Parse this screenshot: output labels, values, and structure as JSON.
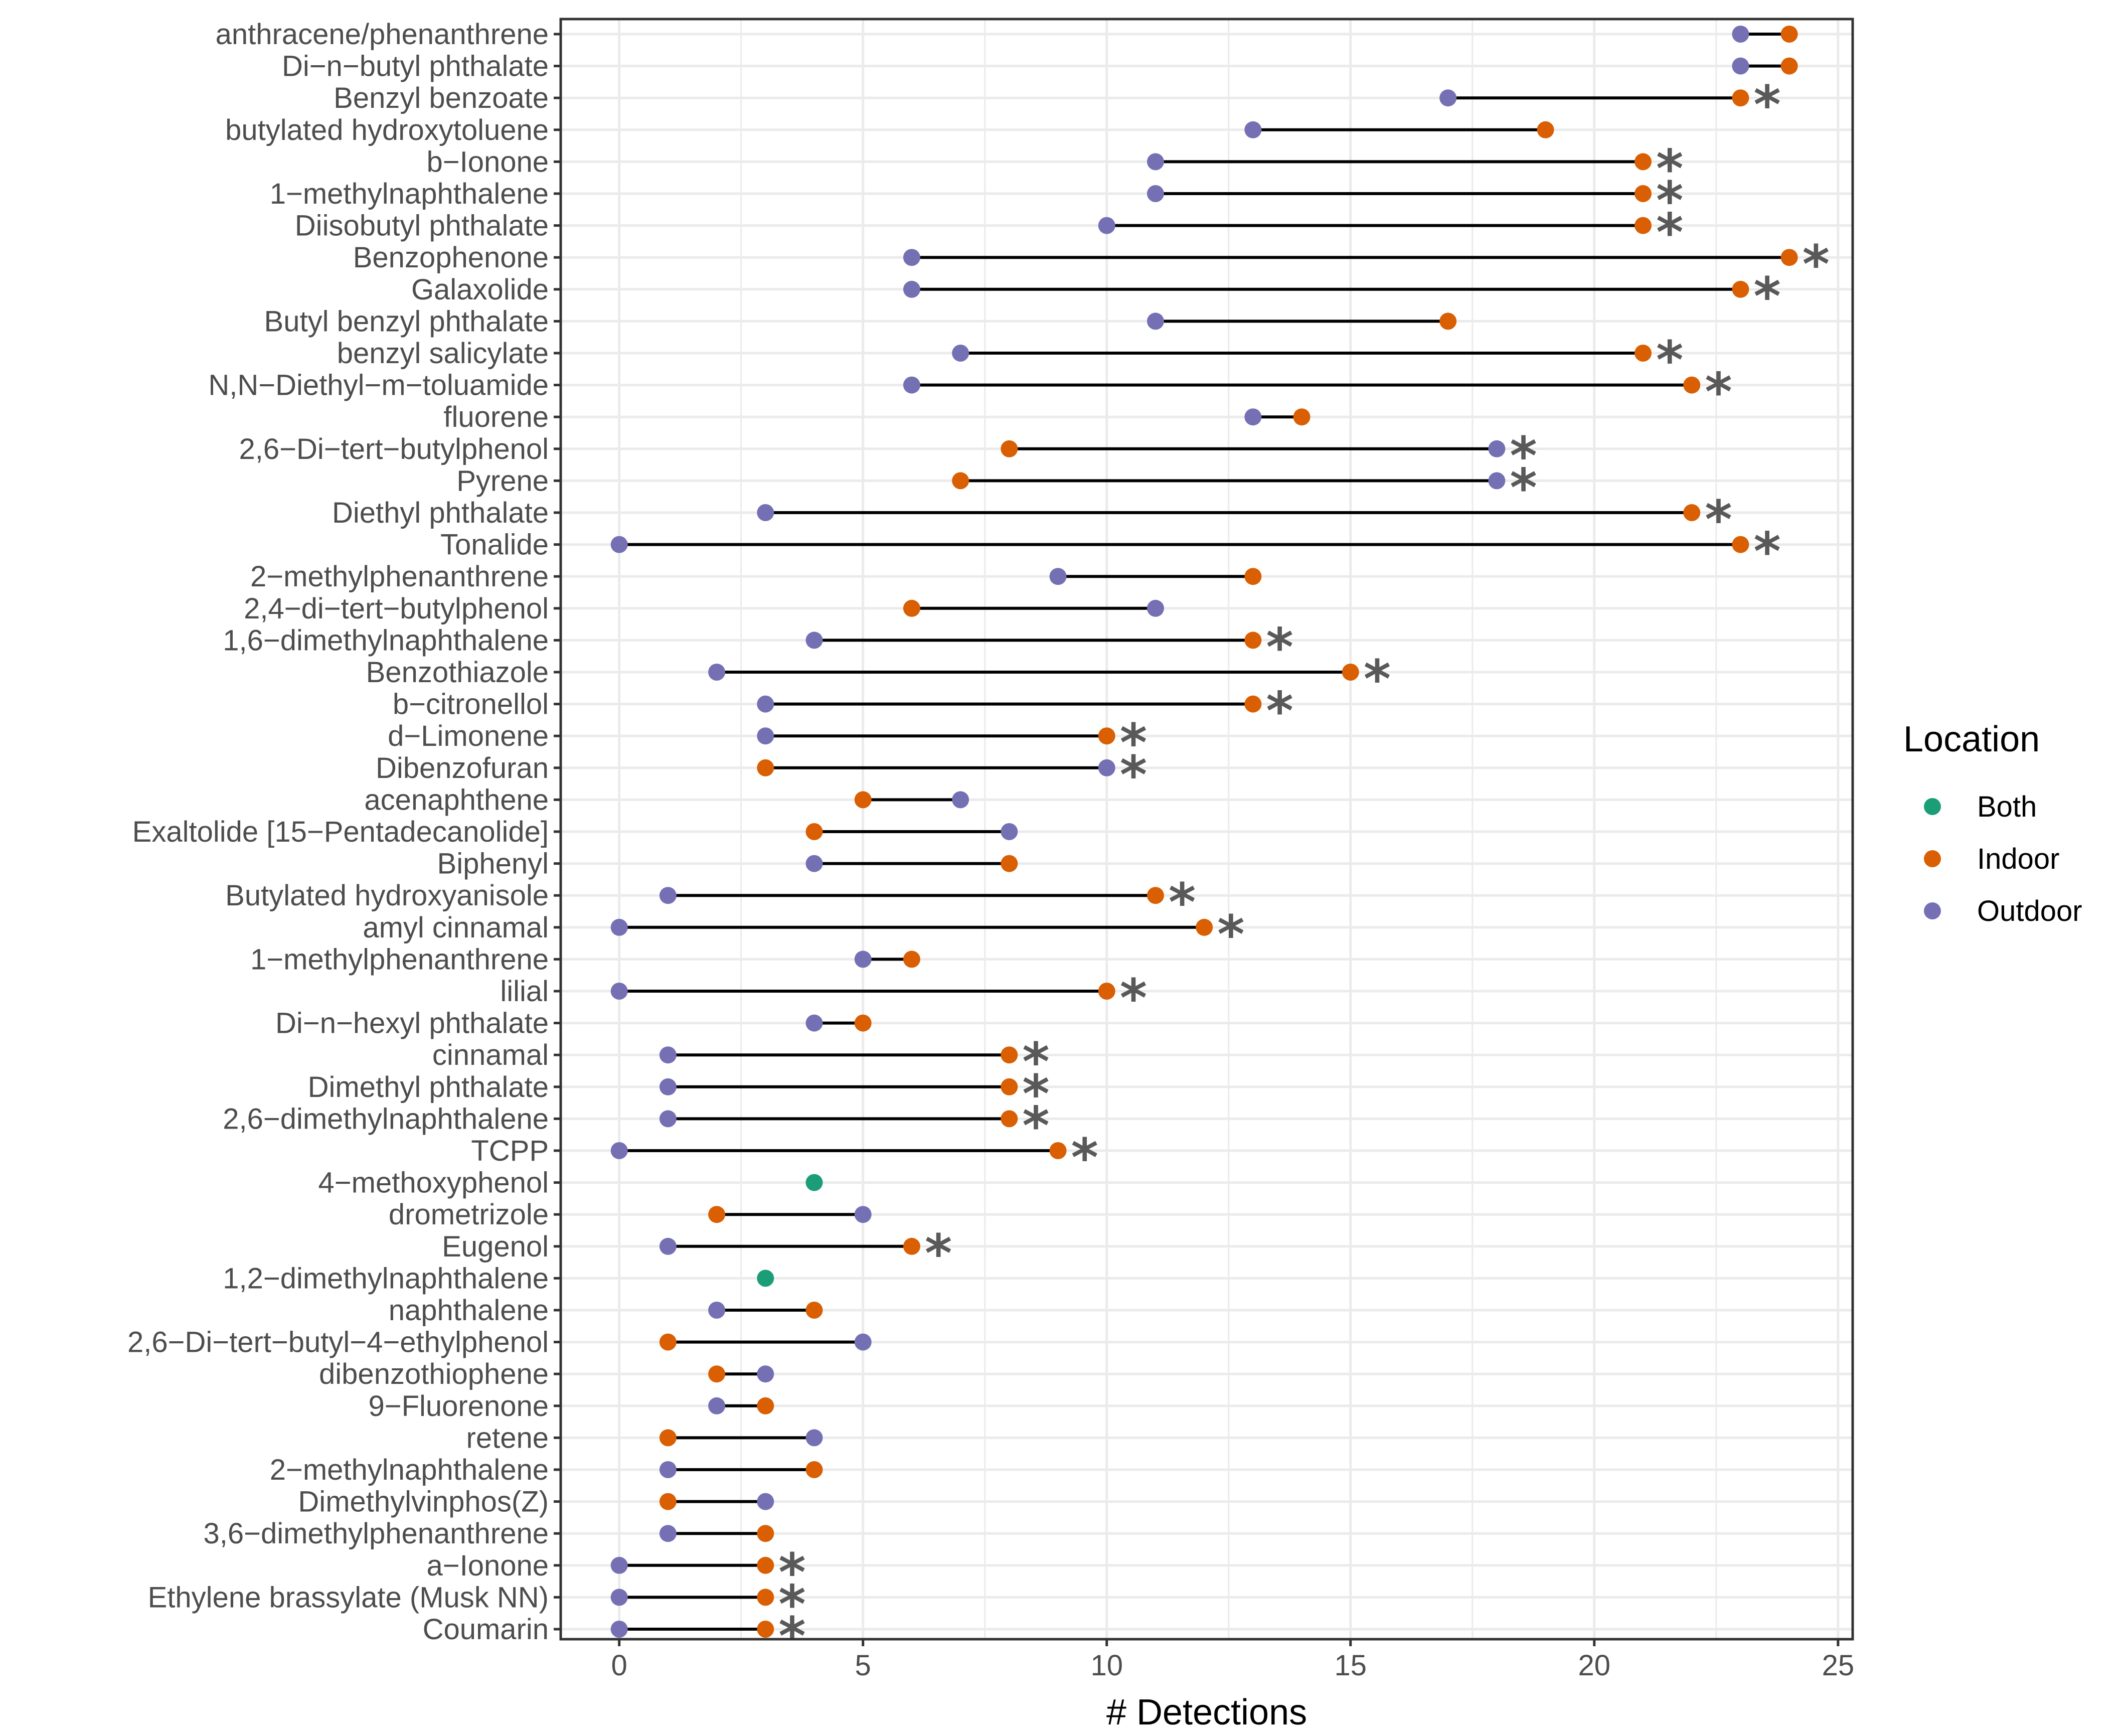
{
  "chart_data": {
    "type": "dumbbell",
    "xlabel": "# Detections",
    "xlim": [
      -1.2,
      25.3
    ],
    "xticks": [
      0,
      5,
      10,
      15,
      20,
      25
    ],
    "legend": {
      "title": "Location",
      "position": "right",
      "entries": [
        {
          "name": "Both",
          "color": "#1B9E77"
        },
        {
          "name": "Indoor",
          "color": "#D95F02"
        },
        {
          "name": "Outdoor",
          "color": "#7570B3"
        }
      ]
    },
    "significance_marker": "*",
    "rows": [
      {
        "label": "anthracene/phenanthrene",
        "indoor": 24,
        "outdoor": 23,
        "sig": false
      },
      {
        "label": "Di−n−butyl phthalate",
        "indoor": 24,
        "outdoor": 23,
        "sig": false
      },
      {
        "label": "Benzyl benzoate",
        "indoor": 23,
        "outdoor": 17,
        "sig": true
      },
      {
        "label": "butylated hydroxytoluene",
        "indoor": 19,
        "outdoor": 13,
        "sig": false
      },
      {
        "label": "b−Ionone",
        "indoor": 21,
        "outdoor": 11,
        "sig": true
      },
      {
        "label": "1−methylnaphthalene",
        "indoor": 21,
        "outdoor": 11,
        "sig": true
      },
      {
        "label": "Diisobutyl phthalate",
        "indoor": 21,
        "outdoor": 10,
        "sig": true
      },
      {
        "label": "Benzophenone",
        "indoor": 24,
        "outdoor": 6,
        "sig": true
      },
      {
        "label": "Galaxolide",
        "indoor": 23,
        "outdoor": 6,
        "sig": true
      },
      {
        "label": "Butyl benzyl phthalate",
        "indoor": 17,
        "outdoor": 11,
        "sig": false
      },
      {
        "label": "benzyl salicylate",
        "indoor": 21,
        "outdoor": 7,
        "sig": true
      },
      {
        "label": "N,N−Diethyl−m−toluamide",
        "indoor": 22,
        "outdoor": 6,
        "sig": true
      },
      {
        "label": "fluorene",
        "indoor": 14,
        "outdoor": 13,
        "sig": false
      },
      {
        "label": "2,6−Di−tert−butylphenol",
        "indoor": 8,
        "outdoor": 18,
        "sig": true
      },
      {
        "label": "Pyrene",
        "indoor": 7,
        "outdoor": 18,
        "sig": true
      },
      {
        "label": "Diethyl phthalate",
        "indoor": 22,
        "outdoor": 3,
        "sig": true
      },
      {
        "label": "Tonalide",
        "indoor": 23,
        "outdoor": 0,
        "sig": true
      },
      {
        "label": "2−methylphenanthrene",
        "indoor": 13,
        "outdoor": 9,
        "sig": false
      },
      {
        "label": "2,4−di−tert−butylphenol",
        "indoor": 6,
        "outdoor": 11,
        "sig": false
      },
      {
        "label": "1,6−dimethylnaphthalene",
        "indoor": 13,
        "outdoor": 4,
        "sig": true
      },
      {
        "label": "Benzothiazole",
        "indoor": 15,
        "outdoor": 2,
        "sig": true
      },
      {
        "label": "b−citronellol",
        "indoor": 13,
        "outdoor": 3,
        "sig": true
      },
      {
        "label": "d−Limonene",
        "indoor": 10,
        "outdoor": 3,
        "sig": true
      },
      {
        "label": "Dibenzofuran",
        "indoor": 3,
        "outdoor": 10,
        "sig": true
      },
      {
        "label": "acenaphthene",
        "indoor": 5,
        "outdoor": 7,
        "sig": false
      },
      {
        "label": "Exaltolide [15−Pentadecanolide]",
        "indoor": 4,
        "outdoor": 8,
        "sig": false
      },
      {
        "label": "Biphenyl",
        "indoor": 8,
        "outdoor": 4,
        "sig": false
      },
      {
        "label": "Butylated hydroxyanisole",
        "indoor": 11,
        "outdoor": 1,
        "sig": true
      },
      {
        "label": "amyl cinnamal",
        "indoor": 12,
        "outdoor": 0,
        "sig": true
      },
      {
        "label": "1−methylphenanthrene",
        "indoor": 6,
        "outdoor": 5,
        "sig": false
      },
      {
        "label": "lilial",
        "indoor": 10,
        "outdoor": 0,
        "sig": true
      },
      {
        "label": "Di−n−hexyl phthalate",
        "indoor": 5,
        "outdoor": 4,
        "sig": false
      },
      {
        "label": "cinnamal",
        "indoor": 8,
        "outdoor": 1,
        "sig": true
      },
      {
        "label": "Dimethyl phthalate",
        "indoor": 8,
        "outdoor": 1,
        "sig": true
      },
      {
        "label": "2,6−dimethylnaphthalene",
        "indoor": 8,
        "outdoor": 1,
        "sig": true
      },
      {
        "label": "TCPP",
        "indoor": 9,
        "outdoor": 0,
        "sig": true
      },
      {
        "label": "4−methoxyphenol",
        "both": 4,
        "sig": false
      },
      {
        "label": "drometrizole",
        "indoor": 2,
        "outdoor": 5,
        "sig": false
      },
      {
        "label": "Eugenol",
        "indoor": 6,
        "outdoor": 1,
        "sig": true
      },
      {
        "label": "1,2−dimethylnaphthalene",
        "both": 3,
        "sig": false
      },
      {
        "label": "naphthalene",
        "indoor": 4,
        "outdoor": 2,
        "sig": false
      },
      {
        "label": "2,6−Di−tert−butyl−4−ethylphenol",
        "indoor": 1,
        "outdoor": 5,
        "sig": false
      },
      {
        "label": "dibenzothiophene",
        "indoor": 2,
        "outdoor": 3,
        "sig": false
      },
      {
        "label": "9−Fluorenone",
        "indoor": 3,
        "outdoor": 2,
        "sig": false
      },
      {
        "label": "retene",
        "indoor": 1,
        "outdoor": 4,
        "sig": false
      },
      {
        "label": "2−methylnaphthalene",
        "indoor": 4,
        "outdoor": 1,
        "sig": false
      },
      {
        "label": "Dimethylvinphos(Z)",
        "indoor": 1,
        "outdoor": 3,
        "sig": false
      },
      {
        "label": "3,6−dimethylphenanthrene",
        "indoor": 3,
        "outdoor": 1,
        "sig": false
      },
      {
        "label": "a−Ionone",
        "indoor": 3,
        "outdoor": 0,
        "sig": true
      },
      {
        "label": "Ethylene brassylate (Musk NN)",
        "indoor": 3,
        "outdoor": 0,
        "sig": true
      },
      {
        "label": "Coumarin",
        "indoor": 3,
        "outdoor": 0,
        "sig": true
      }
    ]
  }
}
